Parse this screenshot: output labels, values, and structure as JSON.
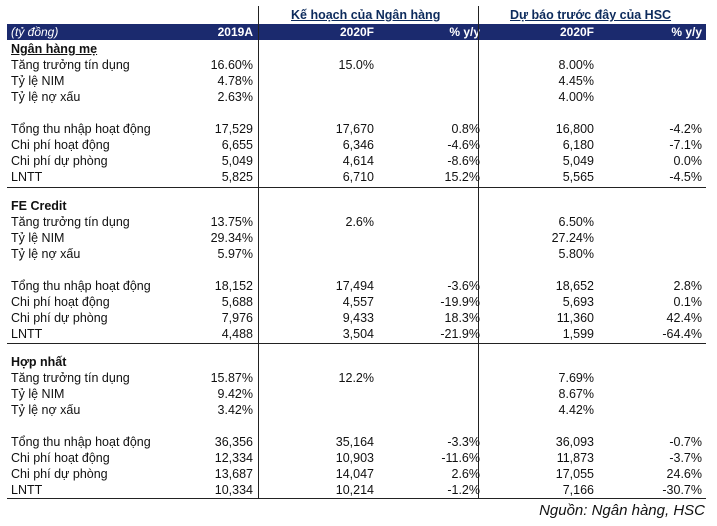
{
  "header": {
    "group1": "Kế hoạch của Ngân hàng",
    "group2": "Dự báo trước đây của HSC",
    "unit": "(tỷ đồng)",
    "col1": "2019A",
    "col2": "2020F",
    "col3": "% y/y",
    "col4": "2020F",
    "col5": "% y/y"
  },
  "sections": [
    {
      "title": "Ngân hàng mẹ",
      "rows": [
        [
          "Tăng trưởng tín dụng",
          "16.60%",
          "15.0%",
          "",
          "8.00%",
          ""
        ],
        [
          "Tỷ lệ NIM",
          "4.78%",
          "",
          "",
          "4.45%",
          ""
        ],
        [
          "Tỷ lệ nợ xấu",
          "2.63%",
          "",
          "",
          "4.00%",
          ""
        ],
        [
          "Tổng thu nhập hoạt động",
          "17,529",
          "17,670",
          "0.8%",
          "16,800",
          "-4.2%"
        ],
        [
          "Chi phí hoạt động",
          "6,655",
          "6,346",
          "-4.6%",
          "6,180",
          "-7.1%"
        ],
        [
          "Chi phí dự phòng",
          "5,049",
          "4,614",
          "-8.6%",
          "5,049",
          "0.0%"
        ],
        [
          "LNTT",
          "5,825",
          "6,710",
          "15.2%",
          "5,565",
          "-4.5%"
        ]
      ]
    },
    {
      "title": "FE Credit",
      "rows": [
        [
          "Tăng trưởng tín dụng",
          "13.75%",
          "2.6%",
          "",
          "6.50%",
          ""
        ],
        [
          "Tỷ lệ NIM",
          "29.34%",
          "",
          "",
          "27.24%",
          ""
        ],
        [
          "Tỷ lệ nợ xấu",
          "5.97%",
          "",
          "",
          "5.80%",
          ""
        ],
        [
          "Tổng thu nhập hoạt động",
          "18,152",
          "17,494",
          "-3.6%",
          "18,652",
          "2.8%"
        ],
        [
          "Chi phí hoạt động",
          "5,688",
          "4,557",
          "-19.9%",
          "5,693",
          "0.1%"
        ],
        [
          "Chi phí dự phòng",
          "7,976",
          "9,433",
          "18.3%",
          "11,360",
          "42.4%"
        ],
        [
          "LNTT",
          "4,488",
          "3,504",
          "-21.9%",
          "1,599",
          "-64.4%"
        ]
      ]
    },
    {
      "title": "Hợp nhất",
      "rows": [
        [
          "Tăng trưởng tín dụng",
          "15.87%",
          "12.2%",
          "",
          "7.69%",
          ""
        ],
        [
          "Tỷ lệ NIM",
          "9.42%",
          "",
          "",
          "8.67%",
          ""
        ],
        [
          "Tỷ lệ nợ xấu",
          "3.42%",
          "",
          "",
          "4.42%",
          ""
        ],
        [
          "Tổng thu nhập hoạt động",
          "36,356",
          "35,164",
          "-3.3%",
          "36,093",
          "-0.7%"
        ],
        [
          "Chi phí hoạt động",
          "12,334",
          "10,903",
          "-11.6%",
          "11,873",
          "-3.7%"
        ],
        [
          "Chi phí dự phòng",
          "13,687",
          "14,047",
          "2.6%",
          "17,055",
          "24.6%"
        ],
        [
          "LNTT",
          "10,334",
          "10,214",
          "-1.2%",
          "7,166",
          "-30.7%"
        ]
      ]
    }
  ],
  "source": "Nguồn: Ngân hàng, HSC"
}
